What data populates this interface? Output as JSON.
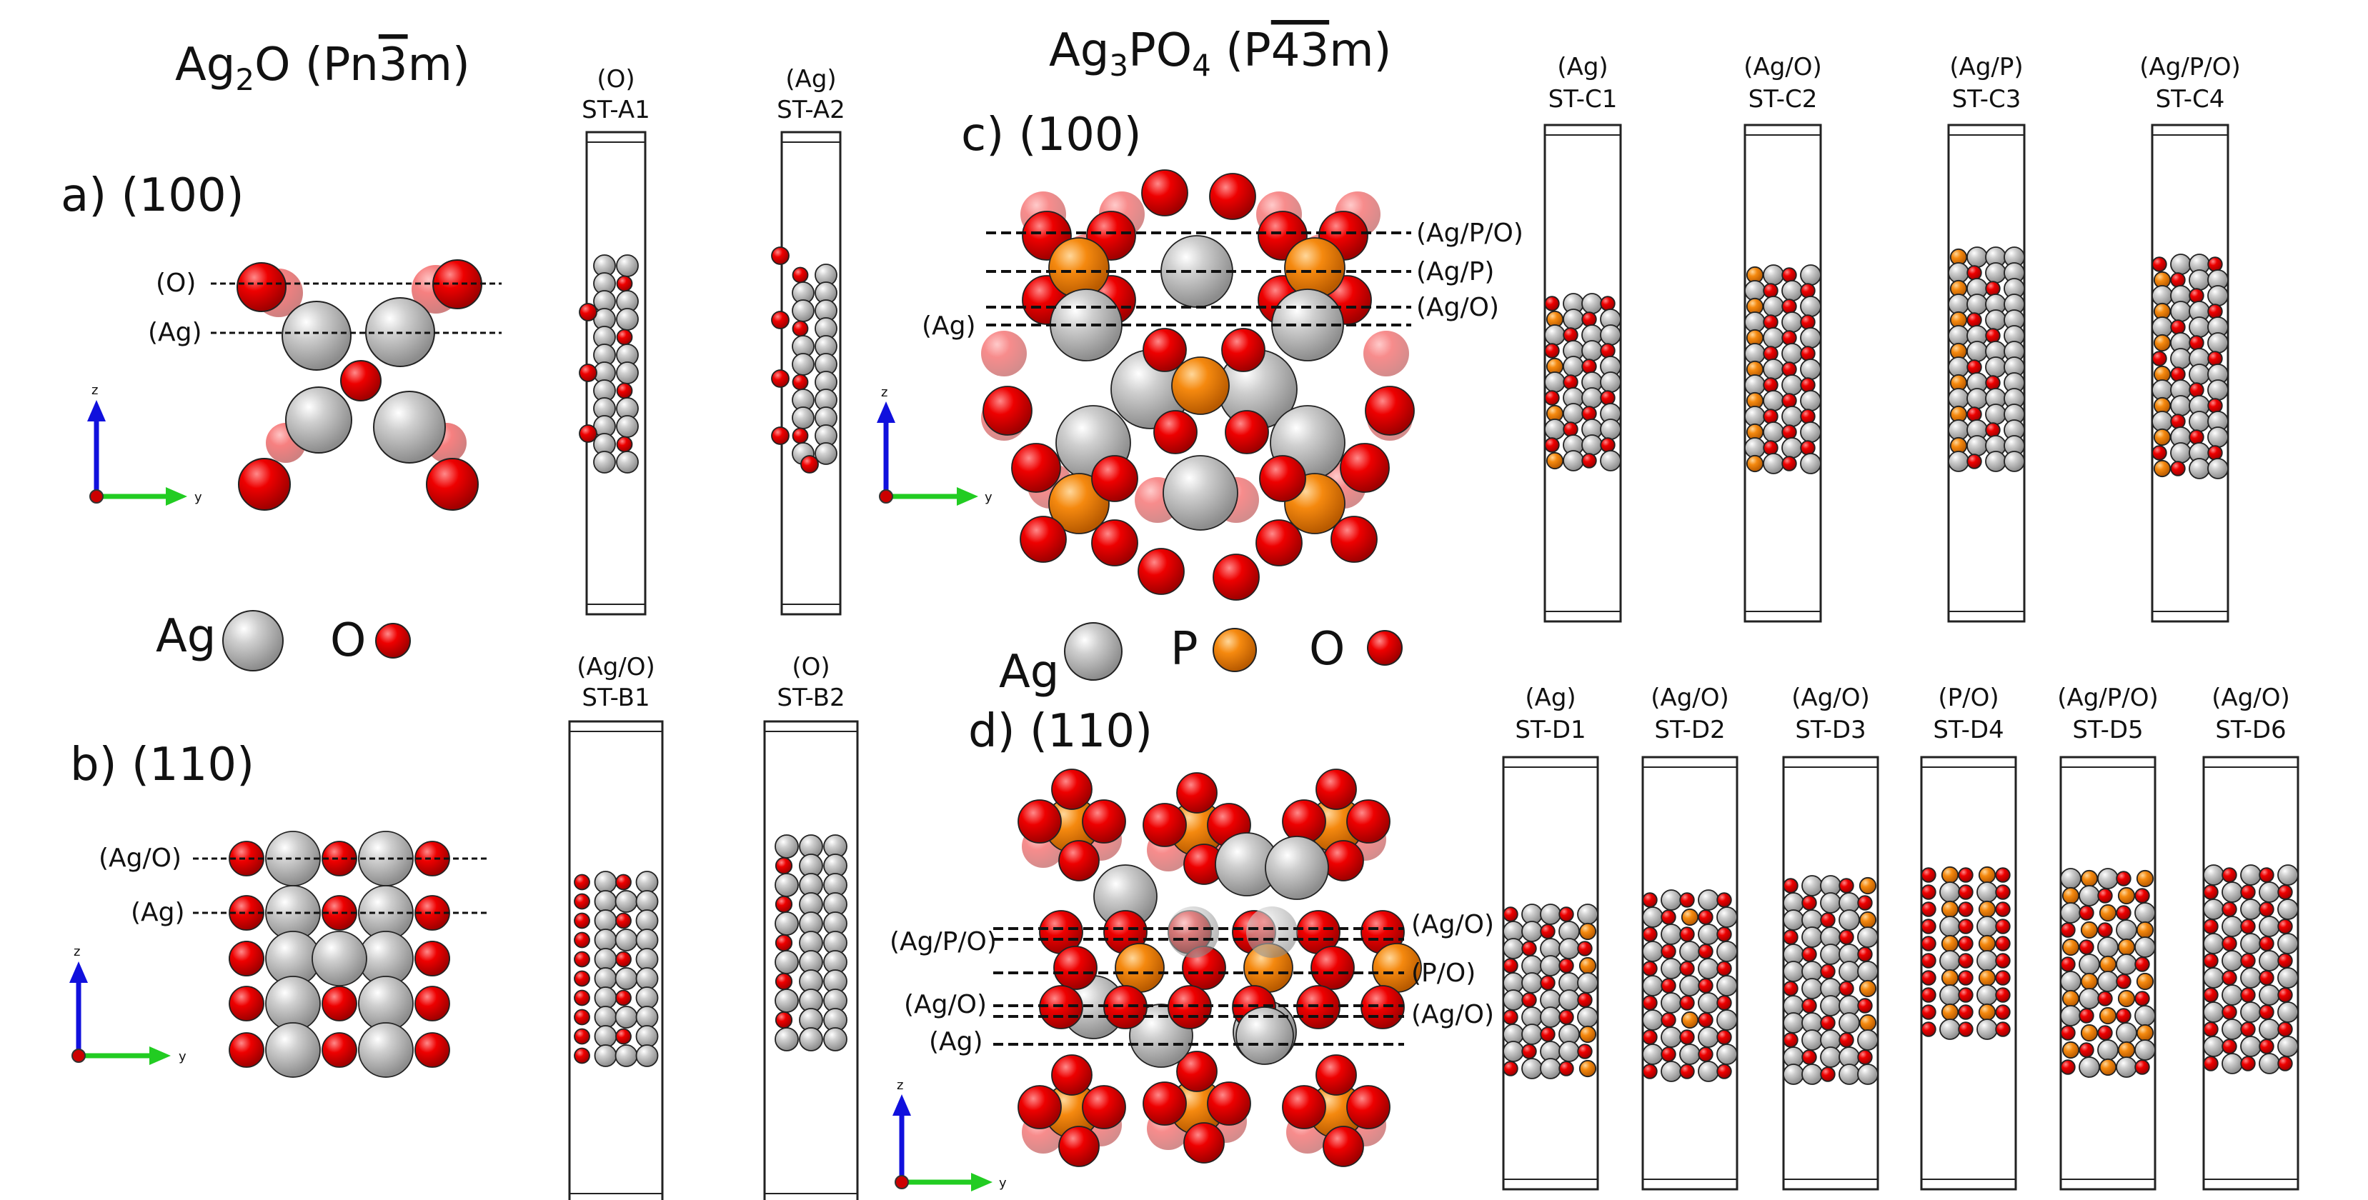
{
  "ag2o": {
    "title": "Ag2O (Pn3m)",
    "panel_a": "a) (100)",
    "panel_b": "b) (110)",
    "a_layers": [
      "(O)",
      "(Ag)"
    ],
    "b_layers": [
      "(Ag/O)",
      "(Ag)"
    ],
    "legend": [
      "Ag",
      "O"
    ],
    "slabs_top": [
      {
        "term": "(O)",
        "id": "ST-A1"
      },
      {
        "term": "(Ag)",
        "id": "ST-A2"
      }
    ],
    "slabs_bottom": [
      {
        "term": "(Ag/O)",
        "id": "ST-B1"
      },
      {
        "term": "(O)",
        "id": "ST-B2"
      }
    ]
  },
  "ag3po4": {
    "title": "Ag3PO4 (P43m)",
    "panel_c": "c) (100)",
    "panel_d": "d) (110)",
    "c_layers": [
      "(Ag/P/O)",
      "(Ag/P)",
      "(Ag/O)",
      "(Ag)"
    ],
    "d_layers": [
      "(Ag/P/O)",
      "(Ag/O)",
      "(P/O)",
      "(Ag/O)",
      "(Ag/O)",
      "(Ag)"
    ],
    "legend": [
      "Ag",
      "P",
      "O"
    ],
    "slabs_c": [
      {
        "term": "(Ag)",
        "id": "ST-C1"
      },
      {
        "term": "(Ag/O)",
        "id": "ST-C2"
      },
      {
        "term": "(Ag/P)",
        "id": "ST-C3"
      },
      {
        "term": "(Ag/P/O)",
        "id": "ST-C4"
      }
    ],
    "slabs_d": [
      {
        "term": "(Ag)",
        "id": "ST-D1"
      },
      {
        "term": "(Ag/O)",
        "id": "ST-D2"
      },
      {
        "term": "(Ag/O)",
        "id": "ST-D3"
      },
      {
        "term": "(P/O)",
        "id": "ST-D4"
      },
      {
        "term": "(Ag/P/O)",
        "id": "ST-D5"
      },
      {
        "term": "(Ag/O)",
        "id": "ST-D6"
      }
    ]
  },
  "axes": {
    "z": "z",
    "y": "y"
  },
  "colors": {
    "ag": "#b8b8b8",
    "p": "#f0820a",
    "o": "#e00000"
  }
}
